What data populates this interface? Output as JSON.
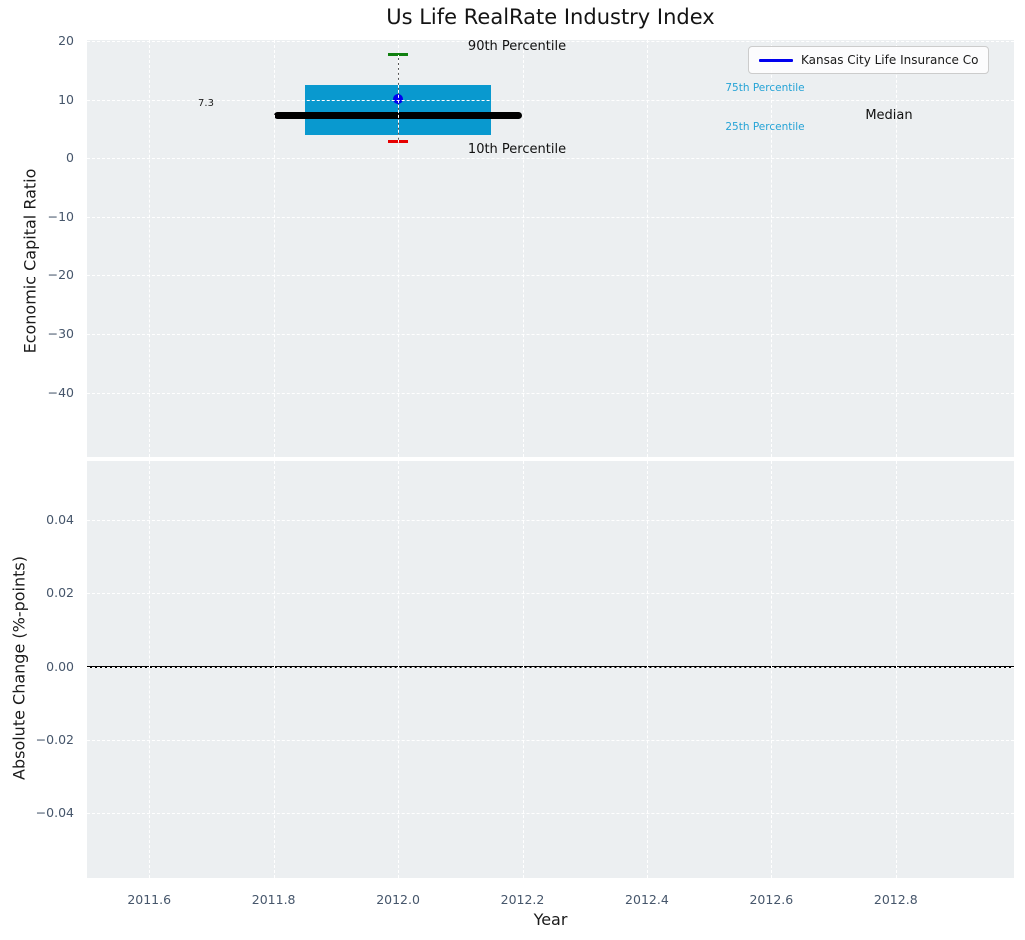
{
  "title": "Us Life RealRate Industry Index",
  "legend": {
    "label": "Kansas City Life Insurance Co"
  },
  "labels": {
    "p90": "90th Percentile",
    "p10": "10th Percentile",
    "p75": "75th Percentile",
    "p25": "25th Percentile",
    "median": "Median",
    "median_value": "7.3"
  },
  "colors": {
    "plot_background": "#eceff1",
    "gridline": "#ffffff",
    "tick_label": "#46566b",
    "box_fill": "#0999cf",
    "percentile_text": "#25a3d6",
    "median_line": "#000000",
    "whisker": "#555555",
    "p90_cap": "#108010",
    "p10_cap": "#e60000",
    "company_marker": "#0000ee",
    "legend_line": "#0000ee",
    "zero_line": "#000000"
  },
  "chart_data": [
    {
      "type": "boxplot",
      "title": "Us Life RealRate Industry Index",
      "ylabel": "Economic Capital Ratio",
      "xlabel": "",
      "xlim": [
        2011.5,
        2012.99
      ],
      "ylim": [
        -51.0,
        20.2
      ],
      "xticks": [
        2011.6,
        2011.8,
        2012.0,
        2012.2,
        2012.4,
        2012.6,
        2012.8
      ],
      "xtick_labels": [
        "2011.6",
        "2011.8",
        "2012.0",
        "2012.2",
        "2012.4",
        "2012.6",
        "2012.8"
      ],
      "yticks": [
        20,
        10,
        0,
        -10,
        -20,
        -30,
        -40
      ],
      "ytick_labels": [
        "20",
        "10",
        "0",
        "−10",
        "−20",
        "−30",
        "−40"
      ],
      "grid": true,
      "legend_position": "upper right",
      "series": [
        {
          "name": "Industry percentile box",
          "x": 2012.0,
          "p90": 17.7,
          "p75": 12.6,
          "median": 7.3,
          "p25": 4.0,
          "p10": 2.9,
          "box_halfwidth": 0.15,
          "median_halfwidth": 0.2
        },
        {
          "name": "Kansas City Life Insurance Co",
          "type": "point",
          "x": 2012.0,
          "y": 10.1
        }
      ]
    },
    {
      "type": "line",
      "title": "",
      "ylabel": "Absolute Change (%-points)",
      "xlabel": "Year",
      "xlim": [
        2011.5,
        2012.99
      ],
      "ylim": [
        -0.0577,
        0.0561
      ],
      "xticks": [
        2011.6,
        2011.8,
        2012.0,
        2012.2,
        2012.4,
        2012.6,
        2012.8
      ],
      "xtick_labels": [
        "2011.6",
        "2011.8",
        "2012.0",
        "2012.2",
        "2012.4",
        "2012.6",
        "2012.8"
      ],
      "yticks": [
        0.04,
        0.02,
        0.0,
        -0.02,
        -0.04
      ],
      "ytick_labels": [
        "0.04",
        "0.02",
        "0.00",
        "−0.02",
        "−0.04"
      ],
      "grid": true,
      "series": [
        {
          "name": "zero-line",
          "y": 0.0
        }
      ]
    }
  ]
}
